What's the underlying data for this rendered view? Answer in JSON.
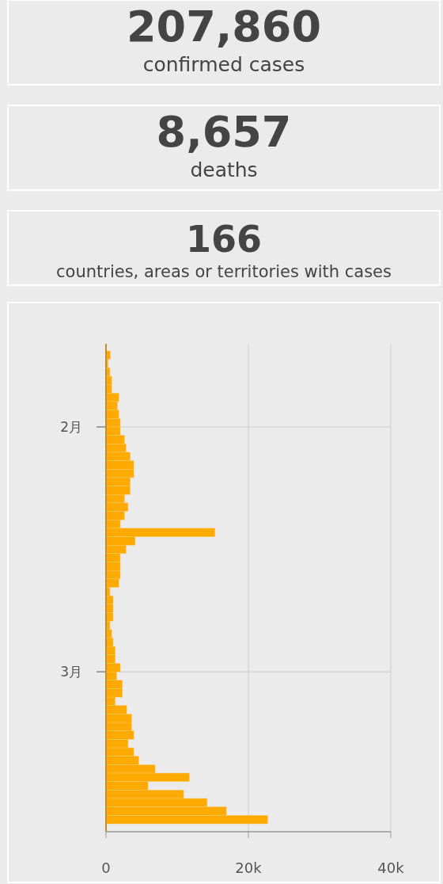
{
  "chart_data": [
    {
      "type": "other",
      "title": "207,860",
      "subtitle": "confirmed cases"
    },
    {
      "type": "other",
      "title": "8,657",
      "subtitle": "deaths"
    },
    {
      "type": "other",
      "title": "166",
      "subtitle": "countries, areas or territories with cases"
    },
    {
      "type": "bar",
      "orientation": "horizontal",
      "color": "#ffaa00",
      "grid": true,
      "categories": [
        null,
        null,
        null,
        null,
        null,
        null,
        null,
        null,
        null,
        "2月",
        null,
        null,
        null,
        null,
        null,
        null,
        null,
        null,
        null,
        null,
        null,
        null,
        null,
        null,
        null,
        null,
        null,
        null,
        null,
        null,
        null,
        null,
        null,
        null,
        null,
        null,
        null,
        null,
        "3月",
        null,
        null,
        null,
        null,
        null,
        null,
        null,
        null,
        null,
        null,
        null,
        null,
        null,
        null,
        null,
        null,
        null
      ],
      "values": [
        600,
        300,
        550,
        800,
        800,
        1800,
        1600,
        1800,
        2000,
        2000,
        2600,
        2800,
        3400,
        3900,
        3900,
        3400,
        3400,
        2600,
        3100,
        2600,
        2000,
        15300,
        4100,
        2800,
        2000,
        2000,
        2000,
        1800,
        550,
        1000,
        1000,
        1000,
        550,
        800,
        1000,
        1300,
        1300,
        2000,
        1500,
        2300,
        2300,
        1300,
        2900,
        3600,
        3600,
        3900,
        3100,
        3900,
        4600,
        6900,
        11700,
        5900,
        10900,
        14200,
        16900,
        22700
      ],
      "xlim": [
        0,
        40000
      ],
      "xticks": [
        {
          "value": 0,
          "label": "0"
        },
        {
          "value": 20000,
          "label": "20k"
        },
        {
          "value": 40000,
          "label": "40k"
        }
      ]
    }
  ]
}
